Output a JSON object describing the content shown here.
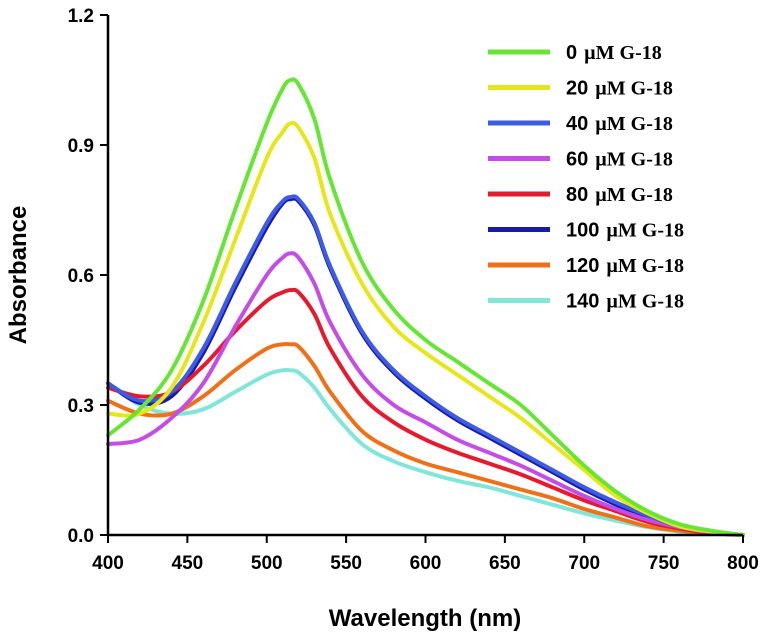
{
  "chart_data": {
    "type": "line",
    "xlabel": "Wavelength (nm)",
    "ylabel": "Absorbance",
    "xlim": [
      400,
      800
    ],
    "ylim": [
      0,
      1.2
    ],
    "xticks": [
      "400",
      "450",
      "500",
      "550",
      "600",
      "650",
      "700",
      "750",
      "800"
    ],
    "yticks": [
      "0.0",
      "0.3",
      "0.6",
      "0.9",
      "1.2"
    ],
    "legend_position": "top-right",
    "grid": false,
    "series": [
      {
        "name": "0 µM G-18",
        "concentration": "0",
        "unit": "µM G-18",
        "color": "#66e633",
        "x": [
          400,
          420,
          440,
          460,
          480,
          500,
          510,
          515,
          520,
          530,
          540,
          560,
          580,
          600,
          620,
          640,
          660,
          680,
          700,
          720,
          740,
          760,
          780,
          800
        ],
        "y": [
          0.23,
          0.29,
          0.38,
          0.54,
          0.75,
          0.95,
          1.03,
          1.05,
          1.04,
          0.96,
          0.82,
          0.63,
          0.52,
          0.45,
          0.4,
          0.35,
          0.3,
          0.23,
          0.16,
          0.1,
          0.055,
          0.025,
          0.01,
          0.0
        ]
      },
      {
        "name": "20 µM G-18",
        "concentration": "20",
        "unit": "µM G-18",
        "color": "#e6e619",
        "x": [
          400,
          420,
          440,
          460,
          480,
          500,
          510,
          515,
          520,
          530,
          540,
          560,
          580,
          600,
          620,
          640,
          660,
          680,
          700,
          720,
          740,
          760,
          780,
          800
        ],
        "y": [
          0.28,
          0.28,
          0.34,
          0.49,
          0.68,
          0.87,
          0.93,
          0.95,
          0.94,
          0.87,
          0.74,
          0.58,
          0.48,
          0.42,
          0.37,
          0.32,
          0.27,
          0.21,
          0.15,
          0.09,
          0.05,
          0.02,
          0.008,
          0.0
        ]
      },
      {
        "name": "40 µM G-18",
        "concentration": "40",
        "unit": "µM G-18",
        "color": "#3d5ce6",
        "x": [
          400,
          420,
          440,
          460,
          480,
          500,
          510,
          515,
          520,
          530,
          540,
          560,
          580,
          600,
          620,
          640,
          660,
          680,
          700,
          720,
          740,
          760,
          780,
          800
        ],
        "y": [
          0.35,
          0.31,
          0.33,
          0.43,
          0.58,
          0.72,
          0.77,
          0.78,
          0.775,
          0.72,
          0.62,
          0.47,
          0.38,
          0.32,
          0.27,
          0.23,
          0.19,
          0.15,
          0.11,
          0.075,
          0.045,
          0.02,
          0.008,
          0.0
        ]
      },
      {
        "name": "60 µM G-18",
        "concentration": "60",
        "unit": "µM G-18",
        "color": "#c44de6",
        "x": [
          400,
          420,
          440,
          460,
          480,
          500,
          510,
          515,
          520,
          530,
          540,
          560,
          580,
          600,
          620,
          640,
          660,
          680,
          700,
          720,
          740,
          760,
          780,
          800
        ],
        "y": [
          0.21,
          0.22,
          0.27,
          0.35,
          0.48,
          0.6,
          0.64,
          0.65,
          0.64,
          0.58,
          0.49,
          0.37,
          0.3,
          0.26,
          0.22,
          0.19,
          0.16,
          0.125,
          0.09,
          0.06,
          0.035,
          0.018,
          0.006,
          0.0
        ]
      },
      {
        "name": "80 µM G-18",
        "concentration": "80",
        "unit": "µM G-18",
        "color": "#e61a2e",
        "x": [
          400,
          420,
          440,
          460,
          480,
          500,
          510,
          515,
          520,
          530,
          540,
          560,
          580,
          600,
          620,
          640,
          660,
          680,
          700,
          720,
          740,
          760,
          780,
          800
        ],
        "y": [
          0.34,
          0.32,
          0.33,
          0.39,
          0.47,
          0.54,
          0.56,
          0.565,
          0.56,
          0.51,
          0.43,
          0.32,
          0.26,
          0.22,
          0.19,
          0.165,
          0.14,
          0.11,
          0.08,
          0.055,
          0.03,
          0.015,
          0.005,
          0.0
        ]
      },
      {
        "name": "100 µM G-18",
        "concentration": "100",
        "unit": "µM G-18",
        "color": "#1a1aa8",
        "x": [
          400,
          420,
          440,
          460,
          480,
          500,
          510,
          515,
          520,
          530,
          540,
          560,
          580,
          600,
          620,
          640,
          660,
          680,
          700,
          720,
          740,
          760,
          780,
          800
        ],
        "y": [
          0.35,
          0.305,
          0.32,
          0.42,
          0.57,
          0.71,
          0.765,
          0.775,
          0.77,
          0.715,
          0.615,
          0.465,
          0.375,
          0.315,
          0.265,
          0.225,
          0.185,
          0.145,
          0.105,
          0.07,
          0.04,
          0.018,
          0.007,
          0.0
        ]
      },
      {
        "name": "120 µM G-18",
        "concentration": "120",
        "unit": "µM G-18",
        "color": "#f07018",
        "x": [
          400,
          420,
          440,
          460,
          480,
          500,
          510,
          515,
          520,
          530,
          540,
          560,
          580,
          600,
          620,
          640,
          660,
          680,
          700,
          720,
          740,
          760,
          780,
          800
        ],
        "y": [
          0.31,
          0.28,
          0.28,
          0.32,
          0.38,
          0.43,
          0.44,
          0.44,
          0.435,
          0.39,
          0.33,
          0.24,
          0.195,
          0.165,
          0.145,
          0.125,
          0.105,
          0.085,
          0.06,
          0.04,
          0.02,
          0.01,
          0.004,
          0.0
        ]
      },
      {
        "name": "140 µM G-18",
        "concentration": "140",
        "unit": "µM G-18",
        "color": "#7fe6d9",
        "x": [
          400,
          420,
          440,
          460,
          480,
          500,
          510,
          515,
          520,
          530,
          540,
          560,
          580,
          600,
          620,
          640,
          660,
          680,
          700,
          720,
          740,
          760,
          780,
          800
        ],
        "y": [
          0.35,
          0.3,
          0.28,
          0.29,
          0.33,
          0.37,
          0.38,
          0.38,
          0.375,
          0.34,
          0.29,
          0.21,
          0.17,
          0.145,
          0.125,
          0.11,
          0.09,
          0.07,
          0.05,
          0.033,
          0.018,
          0.008,
          0.003,
          0.0
        ]
      }
    ]
  }
}
